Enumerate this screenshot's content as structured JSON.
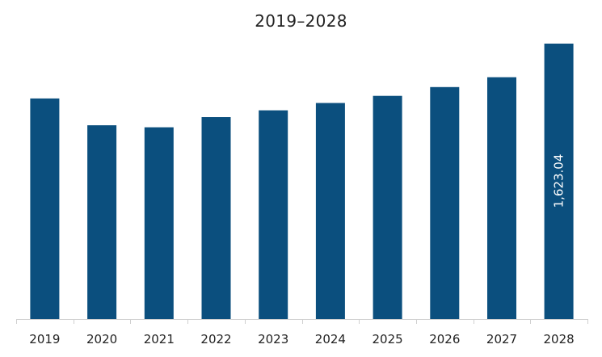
{
  "chart_data": {
    "type": "bar",
    "title": "2019–2028",
    "xlabel": "",
    "ylabel": "",
    "categories": [
      "2019",
      "2020",
      "2021",
      "2022",
      "2023",
      "2024",
      "2025",
      "2026",
      "2027",
      "2028"
    ],
    "values": [
      1300,
      1142,
      1130,
      1190,
      1230,
      1273,
      1315,
      1367,
      1425,
      1623.04
    ],
    "data_labels": [
      {
        "category": "2028",
        "text": "1,623.04"
      }
    ],
    "ylim": [
      0,
      1623.04
    ],
    "grid": false,
    "legend": "none",
    "colors": {
      "bar": "#0b4f7e",
      "axis": "#d0d0d0",
      "text": "#222222",
      "data_label": "#ffffff"
    }
  }
}
